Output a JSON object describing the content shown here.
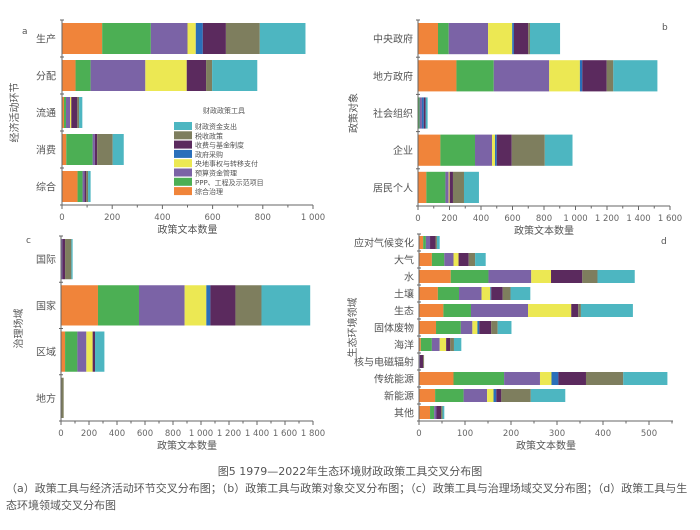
{
  "legend": {
    "title": "财政政策工具",
    "items": [
      {
        "label": "财政资金支出",
        "color": "#4db6c1"
      },
      {
        "label": "税收政策",
        "color": "#7e7e5e"
      },
      {
        "label": "收费与基金制度",
        "color": "#5b2a5e"
      },
      {
        "label": "政府采购",
        "color": "#2a6fba"
      },
      {
        "label": "央地事权与转移支付",
        "color": "#ece853"
      },
      {
        "label": "预算资金管理",
        "color": "#7b63a6"
      },
      {
        "label": "PPP、工程及示范项目",
        "color": "#4caf54"
      },
      {
        "label": "综合治理",
        "color": "#f0843a"
      }
    ]
  },
  "stack_order": [
    "综合治理",
    "PPP、工程及示范项目",
    "预算资金管理",
    "央地事权与转移支付",
    "政府采购",
    "收费与基金制度",
    "税收政策",
    "财政资金支出"
  ],
  "chart_data": [
    {
      "panel": "a",
      "type": "bar",
      "orientation": "horizontal",
      "stacked": true,
      "xlabel": "政策文本数量",
      "ylabel": "经济活动环节",
      "xlim": [
        0,
        1000
      ],
      "xticks": [
        0,
        200,
        400,
        600,
        800,
        1000
      ],
      "xtick_labels": [
        "0",
        "200",
        "400",
        "600",
        "800",
        "1 000"
      ],
      "categories": [
        "生产",
        "分配",
        "流通",
        "消费",
        "综合"
      ],
      "legend_position": "center-right",
      "series": [
        {
          "name": "综合治理",
          "values": [
            160,
            54,
            8,
            17,
            62
          ]
        },
        {
          "name": "PPP、工程及示范项目",
          "values": [
            194,
            60,
            8,
            105,
            20
          ]
        },
        {
          "name": "预算资金管理",
          "values": [
            146,
            218,
            16,
            9,
            8
          ]
        },
        {
          "name": "央地事权与转移支付",
          "values": [
            33,
            165,
            5,
            0,
            0
          ]
        },
        {
          "name": "政府采购",
          "values": [
            28,
            0,
            0,
            0,
            0
          ]
        },
        {
          "name": "收费与基金制度",
          "values": [
            92,
            77,
            24,
            9,
            6
          ]
        },
        {
          "name": "税收政策",
          "values": [
            135,
            24,
            7,
            62,
            8
          ]
        },
        {
          "name": "财政资金支出",
          "values": [
            182,
            180,
            13,
            44,
            10
          ]
        }
      ]
    },
    {
      "panel": "b",
      "type": "bar",
      "orientation": "horizontal",
      "stacked": true,
      "xlabel": "政策文本数量",
      "ylabel": "政策对象",
      "xlim": [
        0,
        1600
      ],
      "xticks": [
        0,
        200,
        400,
        600,
        800,
        1000,
        1200,
        1400,
        1600
      ],
      "xtick_labels": [
        "0",
        "200",
        "400",
        "600",
        "800",
        "1 000",
        "1 200",
        "1 400",
        "1 600"
      ],
      "categories": [
        "中央政府",
        "地方政府",
        "社会组织",
        "企业",
        "居民个人"
      ],
      "series": [
        {
          "name": "综合治理",
          "values": [
            127,
            244,
            0,
            142,
            53
          ]
        },
        {
          "name": "PPP、工程及示范项目",
          "values": [
            68,
            237,
            10,
            220,
            121
          ]
        },
        {
          "name": "预算资金管理",
          "values": [
            250,
            352,
            15,
            108,
            21
          ]
        },
        {
          "name": "央地事权与转移支付",
          "values": [
            153,
            195,
            0,
            19,
            6
          ]
        },
        {
          "name": "政府采购",
          "values": [
            11,
            15,
            12,
            11,
            0
          ]
        },
        {
          "name": "收费与基金制度",
          "values": [
            91,
            155,
            12,
            95,
            21
          ]
        },
        {
          "name": "税收政策",
          "values": [
            11,
            42,
            0,
            210,
            70
          ]
        },
        {
          "name": "财政资金支出",
          "values": [
            191,
            280,
            12,
            176,
            95
          ]
        }
      ]
    },
    {
      "panel": "c",
      "type": "bar",
      "orientation": "horizontal",
      "stacked": true,
      "xlabel": "政策文本数量",
      "ylabel": "治理场域",
      "xlim": [
        0,
        1800
      ],
      "xticks": [
        0,
        200,
        400,
        600,
        800,
        1000,
        1200,
        1400,
        1600,
        1800
      ],
      "xtick_labels": [
        "0",
        "200",
        "400",
        "600",
        "800",
        "1 000",
        "1 200",
        "1 400",
        "1 600",
        "1 800"
      ],
      "categories": [
        "国际",
        "国家",
        "区域",
        "地方"
      ],
      "series": [
        {
          "name": "综合治理",
          "values": [
            0,
            264,
            29,
            0
          ]
        },
        {
          "name": "PPP、工程及示范项目",
          "values": [
            0,
            293,
            88,
            0
          ]
        },
        {
          "name": "预算资金管理",
          "values": [
            10,
            326,
            64,
            0
          ]
        },
        {
          "name": "央地事权与转移支付",
          "values": [
            0,
            155,
            45,
            0
          ]
        },
        {
          "name": "政府采购",
          "values": [
            0,
            29,
            0,
            0
          ]
        },
        {
          "name": "收费与基金制度",
          "values": [
            19,
            179,
            17,
            0
          ]
        },
        {
          "name": "税收政策",
          "values": [
            45,
            186,
            0,
            19
          ]
        },
        {
          "name": "财政资金支出",
          "values": [
            9,
            348,
            67,
            0
          ]
        }
      ]
    },
    {
      "panel": "d",
      "type": "bar",
      "orientation": "horizontal",
      "stacked": true,
      "xlabel": "政策文本数量",
      "ylabel": "生态环境领域",
      "xlim": [
        0,
        550
      ],
      "xticks": [
        0,
        100,
        200,
        300,
        400,
        500
      ],
      "xtick_labels": [
        "0",
        "100",
        "200",
        "300",
        "400",
        "500"
      ],
      "categories": [
        "应对气候变化",
        "大气",
        "水",
        "土壤",
        "生态",
        "固体废物",
        "海洋",
        "核与电磁辐射",
        "传统能源",
        "新能源",
        "其他"
      ],
      "series": [
        {
          "name": "综合治理",
          "values": [
            9,
            28,
            69,
            41,
            53,
            37,
            4,
            0,
            75,
            35,
            24
          ]
        },
        {
          "name": "PPP、工程及示范项目",
          "values": [
            6,
            27,
            82,
            46,
            60,
            54,
            24,
            0,
            110,
            62,
            9
          ]
        },
        {
          "name": "预算资金管理",
          "values": [
            9,
            20,
            93,
            49,
            124,
            25,
            17,
            2,
            78,
            51,
            5
          ]
        },
        {
          "name": "央地事权与转移支付",
          "values": [
            0,
            11,
            43,
            19,
            94,
            11,
            14,
            0,
            25,
            14,
            0
          ]
        },
        {
          "name": "政府采购",
          "values": [
            0,
            0,
            0,
            2,
            0,
            4,
            0,
            0,
            15,
            6,
            0
          ]
        },
        {
          "name": "收费与基金制度",
          "values": [
            12,
            22,
            68,
            25,
            15,
            26,
            9,
            7,
            60,
            11,
            10
          ]
        },
        {
          "name": "税收政策",
          "values": [
            3,
            14,
            33,
            17,
            6,
            14,
            8,
            2,
            81,
            64,
            3
          ]
        },
        {
          "name": "财政资金支出",
          "values": [
            6,
            23,
            81,
            43,
            113,
            30,
            16,
            0,
            96,
            75,
            4
          ]
        }
      ]
    }
  ],
  "panel_labels": [
    "a",
    "b",
    "c",
    "d"
  ],
  "caption": {
    "title": "图5 1979—2022年生态环境财政政策工具交叉分布图",
    "subtitle": "（a）政策工具与经济活动环节交叉分布图；（b）政策工具与政策对象交叉分布图；（c）政策工具与治理场域交叉分布图；（d）政策工具与生态环境领域交叉分布图"
  }
}
